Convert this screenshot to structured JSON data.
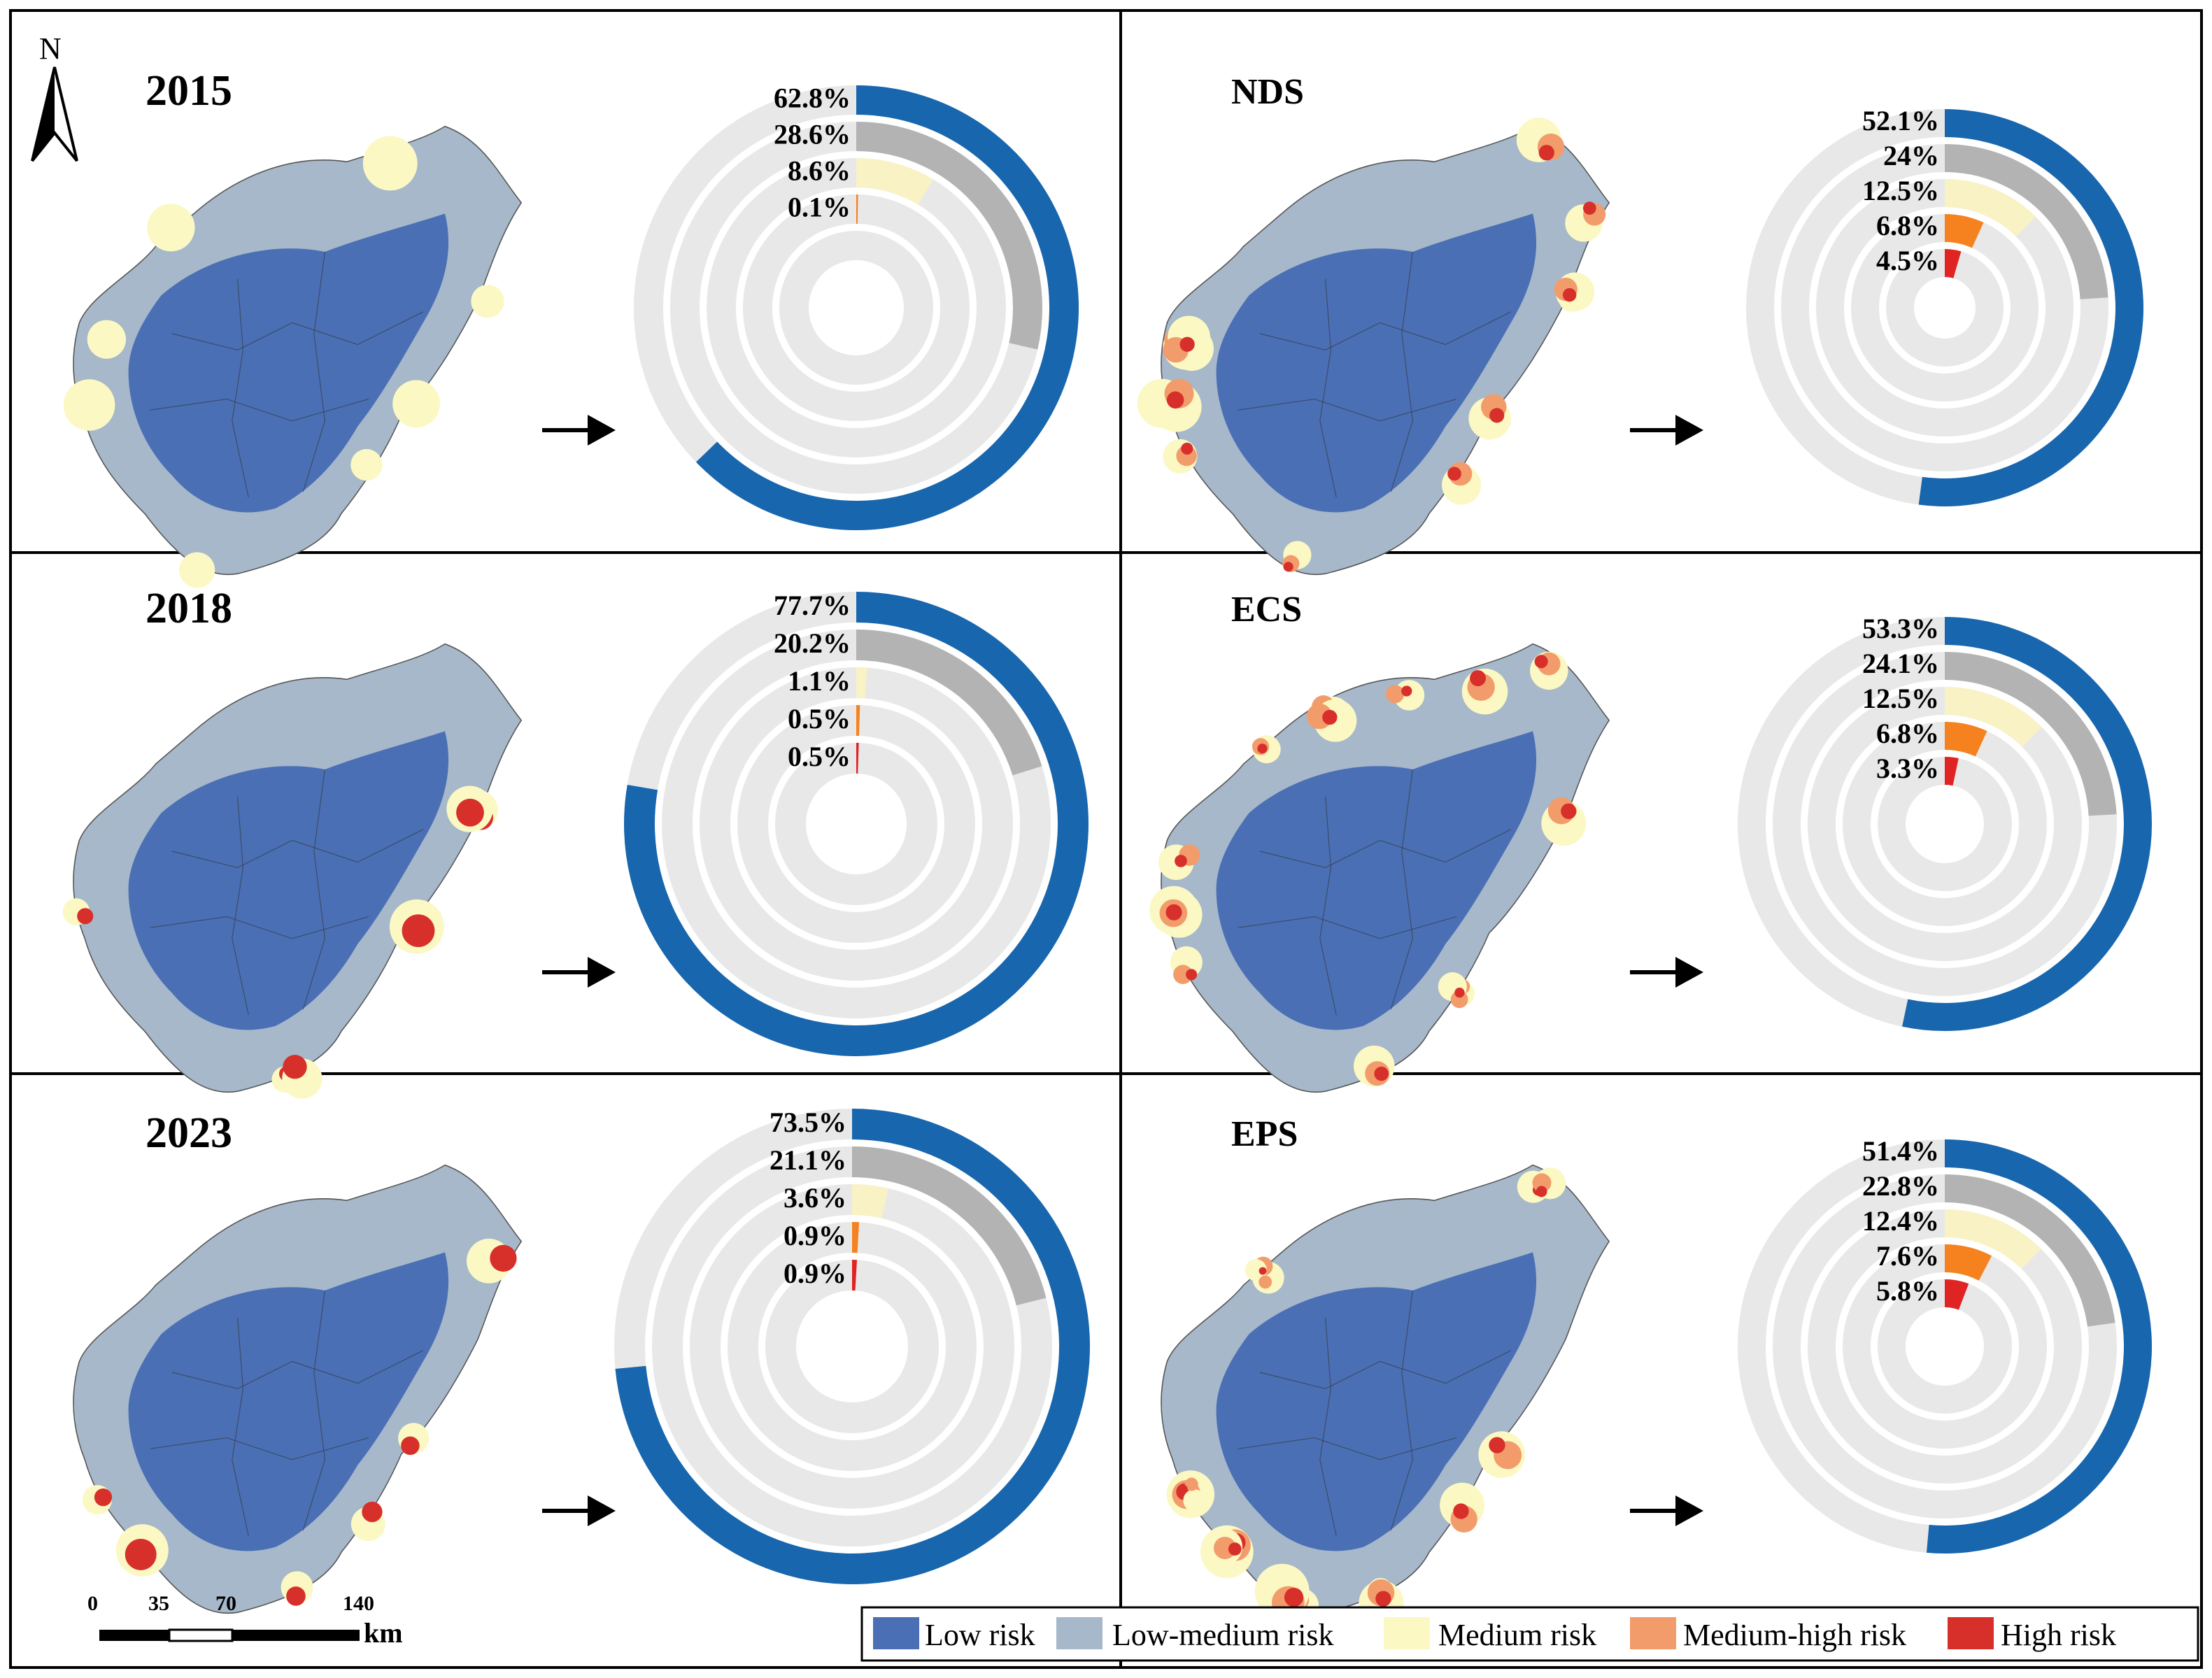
{
  "figure": {
    "north_label": "N",
    "scale_bar": {
      "ticks": [
        "0",
        "35",
        "70",
        "140"
      ],
      "unit": "km"
    },
    "legend": [
      {
        "label": "Low risk",
        "color": "#4a6fb5"
      },
      {
        "label": "Low-medium risk",
        "color": "#a6b8c9"
      },
      {
        "label": "Medium risk",
        "color": "#fbf8c4"
      },
      {
        "label": "Medium-high risk",
        "color": "#f39c6b"
      },
      {
        "label": "High risk",
        "color": "#d7302b"
      }
    ]
  },
  "chart_data": [
    {
      "type": "radial-bar",
      "title": "2015",
      "categories": [
        "Low risk",
        "Low-medium risk",
        "Medium risk",
        "Medium-high risk",
        "High risk"
      ],
      "values": [
        62.8,
        28.6,
        8.6,
        0.1,
        null
      ],
      "labels": [
        "62.8%",
        "28.6%",
        "8.6%",
        "0.1%",
        null
      ]
    },
    {
      "type": "radial-bar",
      "title": "NDS",
      "categories": [
        "Low risk",
        "Low-medium risk",
        "Medium risk",
        "Medium-high risk",
        "High risk"
      ],
      "values": [
        52.1,
        24,
        12.5,
        6.8,
        4.5
      ],
      "labels": [
        "52.1%",
        "24%",
        "12.5%",
        "6.8%",
        "4.5%"
      ]
    },
    {
      "type": "radial-bar",
      "title": "2018",
      "categories": [
        "Low risk",
        "Low-medium risk",
        "Medium risk",
        "Medium-high risk",
        "High risk"
      ],
      "values": [
        77.7,
        20.2,
        1.1,
        0.5,
        0.5
      ],
      "labels": [
        "77.7%",
        "20.2%",
        "1.1%",
        "0.5%",
        "0.5%"
      ]
    },
    {
      "type": "radial-bar",
      "title": "ECS",
      "categories": [
        "Low risk",
        "Low-medium risk",
        "Medium risk",
        "Medium-high risk",
        "High risk"
      ],
      "values": [
        53.3,
        24.1,
        12.5,
        6.8,
        3.3
      ],
      "labels": [
        "53.3%",
        "24.1%",
        "12.5%",
        "6.8%",
        "3.3%"
      ]
    },
    {
      "type": "radial-bar",
      "title": "2023",
      "categories": [
        "Low risk",
        "Low-medium risk",
        "Medium risk",
        "Medium-high risk",
        "High risk"
      ],
      "values": [
        73.5,
        21.1,
        3.6,
        0.9,
        0.9
      ],
      "labels": [
        "73.5%",
        "21.1%",
        "3.6%",
        "0.9%",
        "0.9%"
      ]
    },
    {
      "type": "radial-bar",
      "title": "EPS",
      "categories": [
        "Low risk",
        "Low-medium risk",
        "Medium risk",
        "Medium-high risk",
        "High risk"
      ],
      "values": [
        51.4,
        22.8,
        12.4,
        7.6,
        5.8
      ],
      "labels": [
        "51.4%",
        "22.8%",
        "12.4%",
        "7.6%",
        "5.8%"
      ]
    }
  ],
  "colors": {
    "ring_low": "#1766ae",
    "ring_lowmed": "#b3b3b3",
    "ring_med": "#f8f2c4",
    "ring_medhigh": "#f5821f",
    "ring_high": "#e02424",
    "track": "#e8e8e8",
    "map_low": "#4a6fb5",
    "map_lowmed": "#a6b8c9",
    "map_med": "#fbf8c4",
    "map_medhigh": "#f39c6b",
    "map_high": "#d7302b"
  }
}
